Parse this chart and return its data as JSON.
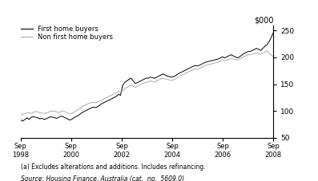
{
  "ylabel_right": "$000",
  "ylim": [
    50,
    260
  ],
  "yticks": [
    50,
    100,
    150,
    200,
    250
  ],
  "xtick_labels": [
    "Sep\n1998",
    "Sep\n2000",
    "Sep\n2002",
    "Sep\n2004",
    "Sep\n2006",
    "Sep\n2008"
  ],
  "footnote1": "(a) Excludes alterations and additions. Includes refinancing.",
  "footnote2": "Source: Housing Finance, Australia (cat.  no.  5609.0)",
  "legend_first": "First home buyers",
  "legend_nonfirst": "Non first home buyers",
  "line_color_first": "#000000",
  "line_color_nonfirst": "#aaaaaa",
  "background_color": "#ffffff",
  "first_home_buyers": [
    83,
    81,
    84,
    87,
    84,
    88,
    89,
    88,
    87,
    85,
    86,
    84,
    85,
    87,
    89,
    88,
    87,
    86,
    88,
    90,
    89,
    87,
    85,
    83,
    84,
    87,
    89,
    91,
    94,
    97,
    99,
    101,
    103,
    105,
    107,
    106,
    107,
    110,
    113,
    115,
    117,
    119,
    121,
    123,
    125,
    127,
    131,
    129,
    148,
    153,
    156,
    159,
    161,
    156,
    151,
    153,
    155,
    157,
    159,
    161,
    161,
    163,
    162,
    161,
    163,
    165,
    167,
    169,
    167,
    165,
    164,
    163,
    164,
    166,
    169,
    171,
    173,
    175,
    177,
    179,
    181,
    183,
    185,
    184,
    185,
    187,
    189,
    191,
    192,
    193,
    194,
    195,
    196,
    197,
    199,
    201,
    199,
    201,
    203,
    205,
    203,
    201,
    199,
    201,
    204,
    207,
    209,
    211,
    211,
    213,
    215,
    217,
    215,
    213,
    217,
    221,
    224,
    230,
    238,
    247
  ],
  "non_first_home_buyers": [
    92,
    94,
    95,
    97,
    96,
    95,
    97,
    99,
    98,
    97,
    96,
    95,
    96,
    97,
    99,
    100,
    99,
    98,
    97,
    99,
    100,
    98,
    96,
    94,
    95,
    97,
    100,
    102,
    105,
    108,
    110,
    112,
    114,
    115,
    116,
    115,
    116,
    118,
    120,
    122,
    124,
    126,
    128,
    130,
    132,
    134,
    136,
    135,
    138,
    141,
    144,
    146,
    148,
    146,
    144,
    146,
    148,
    150,
    152,
    153,
    154,
    156,
    155,
    154,
    156,
    158,
    160,
    161,
    160,
    159,
    158,
    157,
    158,
    160,
    163,
    165,
    167,
    169,
    171,
    173,
    175,
    177,
    179,
    178,
    179,
    181,
    183,
    185,
    186,
    187,
    188,
    189,
    190,
    191,
    193,
    195,
    194,
    195,
    196,
    198,
    197,
    196,
    195,
    197,
    199,
    201,
    203,
    205,
    205,
    206,
    207,
    208,
    207,
    206,
    208,
    210,
    212,
    208,
    204,
    201
  ]
}
